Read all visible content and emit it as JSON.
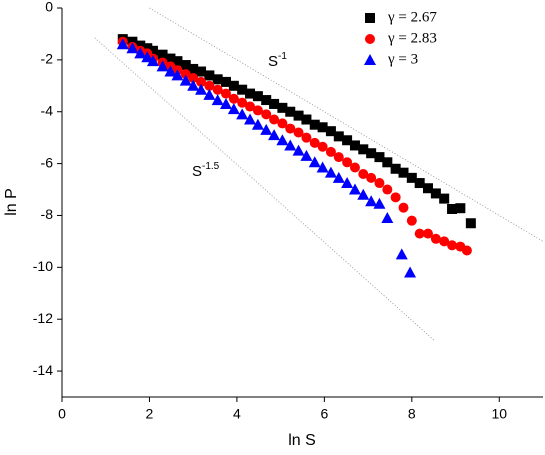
{
  "chart_data": {
    "type": "scatter",
    "x_label": "ln S",
    "y_label": "ln P",
    "xlim": [
      0,
      11
    ],
    "xticks": [
      0,
      2,
      4,
      6,
      8,
      10
    ],
    "ylim": [
      -15,
      0
    ],
    "yticks": [
      0,
      -2,
      -4,
      -6,
      -8,
      -10,
      -12,
      -14
    ],
    "legend": "top-right",
    "series": [
      {
        "name": "γ = 2.67",
        "color": "#000000",
        "marker": "square",
        "x": [
          1.39,
          1.61,
          1.79,
          1.95,
          2.08,
          2.3,
          2.48,
          2.64,
          2.83,
          3.0,
          3.18,
          3.37,
          3.56,
          3.75,
          3.93,
          4.12,
          4.3,
          4.48,
          4.67,
          4.85,
          5.04,
          5.22,
          5.41,
          5.59,
          5.78,
          5.96,
          6.15,
          6.33,
          6.52,
          6.7,
          6.89,
          7.07,
          7.26,
          7.44,
          7.63,
          7.81,
          8.0,
          8.18,
          8.37,
          8.55,
          8.74,
          8.92,
          9.11,
          9.35
        ],
        "values": [
          -1.2,
          -1.3,
          -1.45,
          -1.55,
          -1.65,
          -1.8,
          -1.95,
          -2.05,
          -2.2,
          -2.35,
          -2.45,
          -2.6,
          -2.75,
          -2.85,
          -3.0,
          -3.15,
          -3.3,
          -3.4,
          -3.55,
          -3.7,
          -3.85,
          -4.0,
          -4.15,
          -4.3,
          -4.5,
          -4.6,
          -4.75,
          -4.95,
          -5.1,
          -5.3,
          -5.45,
          -5.6,
          -5.75,
          -5.95,
          -6.2,
          -6.35,
          -6.55,
          -6.75,
          -6.95,
          -7.15,
          -7.35,
          -7.75,
          -7.72,
          -8.3
        ]
      },
      {
        "name": "γ = 2.83",
        "color": "#ff0000",
        "marker": "circle",
        "x": [
          1.39,
          1.61,
          1.79,
          1.95,
          2.08,
          2.3,
          2.48,
          2.64,
          2.83,
          3.0,
          3.18,
          3.37,
          3.56,
          3.75,
          3.93,
          4.12,
          4.3,
          4.48,
          4.67,
          4.85,
          5.04,
          5.22,
          5.41,
          5.59,
          5.78,
          5.96,
          6.15,
          6.33,
          6.52,
          6.7,
          6.89,
          7.07,
          7.26,
          7.44,
          7.63,
          7.81,
          8.0,
          8.18,
          8.37,
          8.55,
          8.74,
          8.92,
          9.11,
          9.26
        ],
        "values": [
          -1.3,
          -1.5,
          -1.65,
          -1.75,
          -1.95,
          -2.1,
          -2.25,
          -2.4,
          -2.55,
          -2.7,
          -2.85,
          -3.0,
          -3.15,
          -3.3,
          -3.5,
          -3.65,
          -3.8,
          -3.95,
          -4.1,
          -4.3,
          -4.45,
          -4.65,
          -4.8,
          -5.0,
          -5.2,
          -5.35,
          -5.55,
          -5.75,
          -5.95,
          -6.15,
          -6.4,
          -6.55,
          -6.75,
          -7.0,
          -7.3,
          -7.7,
          -8.2,
          -8.7,
          -8.7,
          -8.9,
          -9.0,
          -9.15,
          -9.2,
          -9.35
        ]
      },
      {
        "name": "γ = 3",
        "color": "#0000ff",
        "marker": "triangle",
        "x": [
          1.39,
          1.61,
          1.79,
          1.95,
          2.08,
          2.3,
          2.48,
          2.64,
          2.83,
          3.0,
          3.18,
          3.37,
          3.56,
          3.75,
          3.93,
          4.12,
          4.3,
          4.48,
          4.67,
          4.85,
          5.04,
          5.22,
          5.41,
          5.59,
          5.78,
          5.96,
          6.15,
          6.33,
          6.52,
          6.7,
          6.89,
          7.07,
          7.26,
          7.44,
          7.77,
          7.96
        ],
        "values": [
          -1.4,
          -1.55,
          -1.75,
          -1.9,
          -2.05,
          -2.25,
          -2.45,
          -2.6,
          -2.8,
          -3.0,
          -3.15,
          -3.35,
          -3.55,
          -3.7,
          -3.9,
          -4.1,
          -4.3,
          -4.5,
          -4.7,
          -4.9,
          -5.1,
          -5.3,
          -5.5,
          -5.7,
          -5.95,
          -6.15,
          -6.35,
          -6.55,
          -6.75,
          -7.0,
          -7.2,
          -7.45,
          -7.55,
          -8.1,
          -9.5,
          -10.2
        ]
      }
    ],
    "reference_lines": [
      {
        "base": "S",
        "exponent": "-1",
        "x": [
          2,
          11
        ],
        "y": [
          0,
          -9
        ]
      },
      {
        "base": "S",
        "exponent": "-1.5",
        "x": [
          0.75,
          8.5
        ],
        "y": [
          -1.15,
          -12.8
        ]
      }
    ]
  }
}
